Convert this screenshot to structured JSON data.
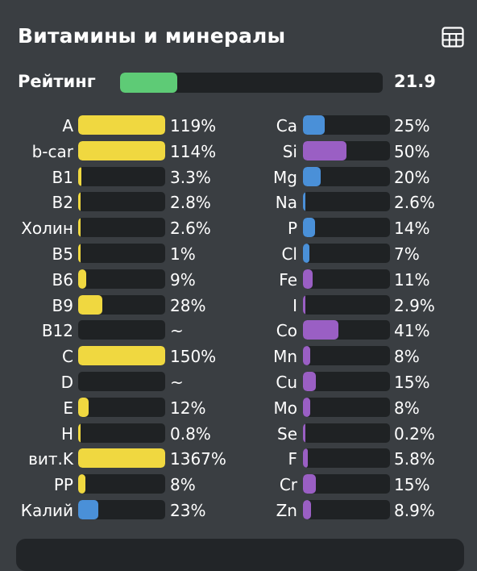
{
  "header": {
    "title": "Витамины и минералы",
    "table_icon": "table-icon"
  },
  "rating": {
    "label": "Рейтинг",
    "value": "21.9",
    "fraction": 0.219,
    "color": "#5ecb76"
  },
  "colors": {
    "vitamin": "#f0d840",
    "mineral_blue": "#4a90d8",
    "mineral_purple": "#9a5fc4",
    "track": "#1f2224"
  },
  "vitamins": [
    {
      "name": "A",
      "pct": "119%",
      "level": 1.0,
      "color": "yellow"
    },
    {
      "name": "b-car",
      "pct": "114%",
      "level": 1.0,
      "color": "yellow"
    },
    {
      "name": "B1",
      "pct": "3.3%",
      "level": 0.033,
      "color": "yellow"
    },
    {
      "name": "B2",
      "pct": "2.8%",
      "level": 0.028,
      "color": "yellow"
    },
    {
      "name": "Холин",
      "pct": "2.6%",
      "level": 0.026,
      "color": "yellow"
    },
    {
      "name": "B5",
      "pct": "1%",
      "level": 0.01,
      "color": "yellow"
    },
    {
      "name": "B6",
      "pct": "9%",
      "level": 0.09,
      "color": "yellow"
    },
    {
      "name": "B9",
      "pct": "28%",
      "level": 0.28,
      "color": "yellow"
    },
    {
      "name": "B12",
      "pct": "~",
      "level": 0,
      "color": "yellow"
    },
    {
      "name": "C",
      "pct": "150%",
      "level": 1.0,
      "color": "yellow"
    },
    {
      "name": "D",
      "pct": "~",
      "level": 0,
      "color": "yellow"
    },
    {
      "name": "E",
      "pct": "12%",
      "level": 0.12,
      "color": "yellow"
    },
    {
      "name": "H",
      "pct": "0.8%",
      "level": 0.008,
      "color": "yellow"
    },
    {
      "name": "вит.K",
      "pct": "1367%",
      "level": 1.0,
      "color": "yellow"
    },
    {
      "name": "PP",
      "pct": "8%",
      "level": 0.08,
      "color": "yellow"
    },
    {
      "name": "Калий",
      "pct": "23%",
      "level": 0.23,
      "color": "blue"
    }
  ],
  "minerals": [
    {
      "name": "Ca",
      "pct": "25%",
      "level": 0.25,
      "color": "blue"
    },
    {
      "name": "Si",
      "pct": "50%",
      "level": 0.5,
      "color": "purple"
    },
    {
      "name": "Mg",
      "pct": "20%",
      "level": 0.2,
      "color": "blue"
    },
    {
      "name": "Na",
      "pct": "2.6%",
      "level": 0.026,
      "color": "blue"
    },
    {
      "name": "P",
      "pct": "14%",
      "level": 0.14,
      "color": "blue"
    },
    {
      "name": "Cl",
      "pct": "7%",
      "level": 0.07,
      "color": "blue"
    },
    {
      "name": "Fe",
      "pct": "11%",
      "level": 0.11,
      "color": "purple"
    },
    {
      "name": "I",
      "pct": "2.9%",
      "level": 0.029,
      "color": "purple"
    },
    {
      "name": "Co",
      "pct": "41%",
      "level": 0.41,
      "color": "purple"
    },
    {
      "name": "Mn",
      "pct": "8%",
      "level": 0.08,
      "color": "purple"
    },
    {
      "name": "Cu",
      "pct": "15%",
      "level": 0.15,
      "color": "purple"
    },
    {
      "name": "Mo",
      "pct": "8%",
      "level": 0.08,
      "color": "purple"
    },
    {
      "name": "Se",
      "pct": "0.2%",
      "level": 0.002,
      "color": "purple"
    },
    {
      "name": "F",
      "pct": "5.8%",
      "level": 0.058,
      "color": "purple"
    },
    {
      "name": "Cr",
      "pct": "15%",
      "level": 0.15,
      "color": "purple"
    },
    {
      "name": "Zn",
      "pct": "8.9%",
      "level": 0.089,
      "color": "purple"
    }
  ]
}
